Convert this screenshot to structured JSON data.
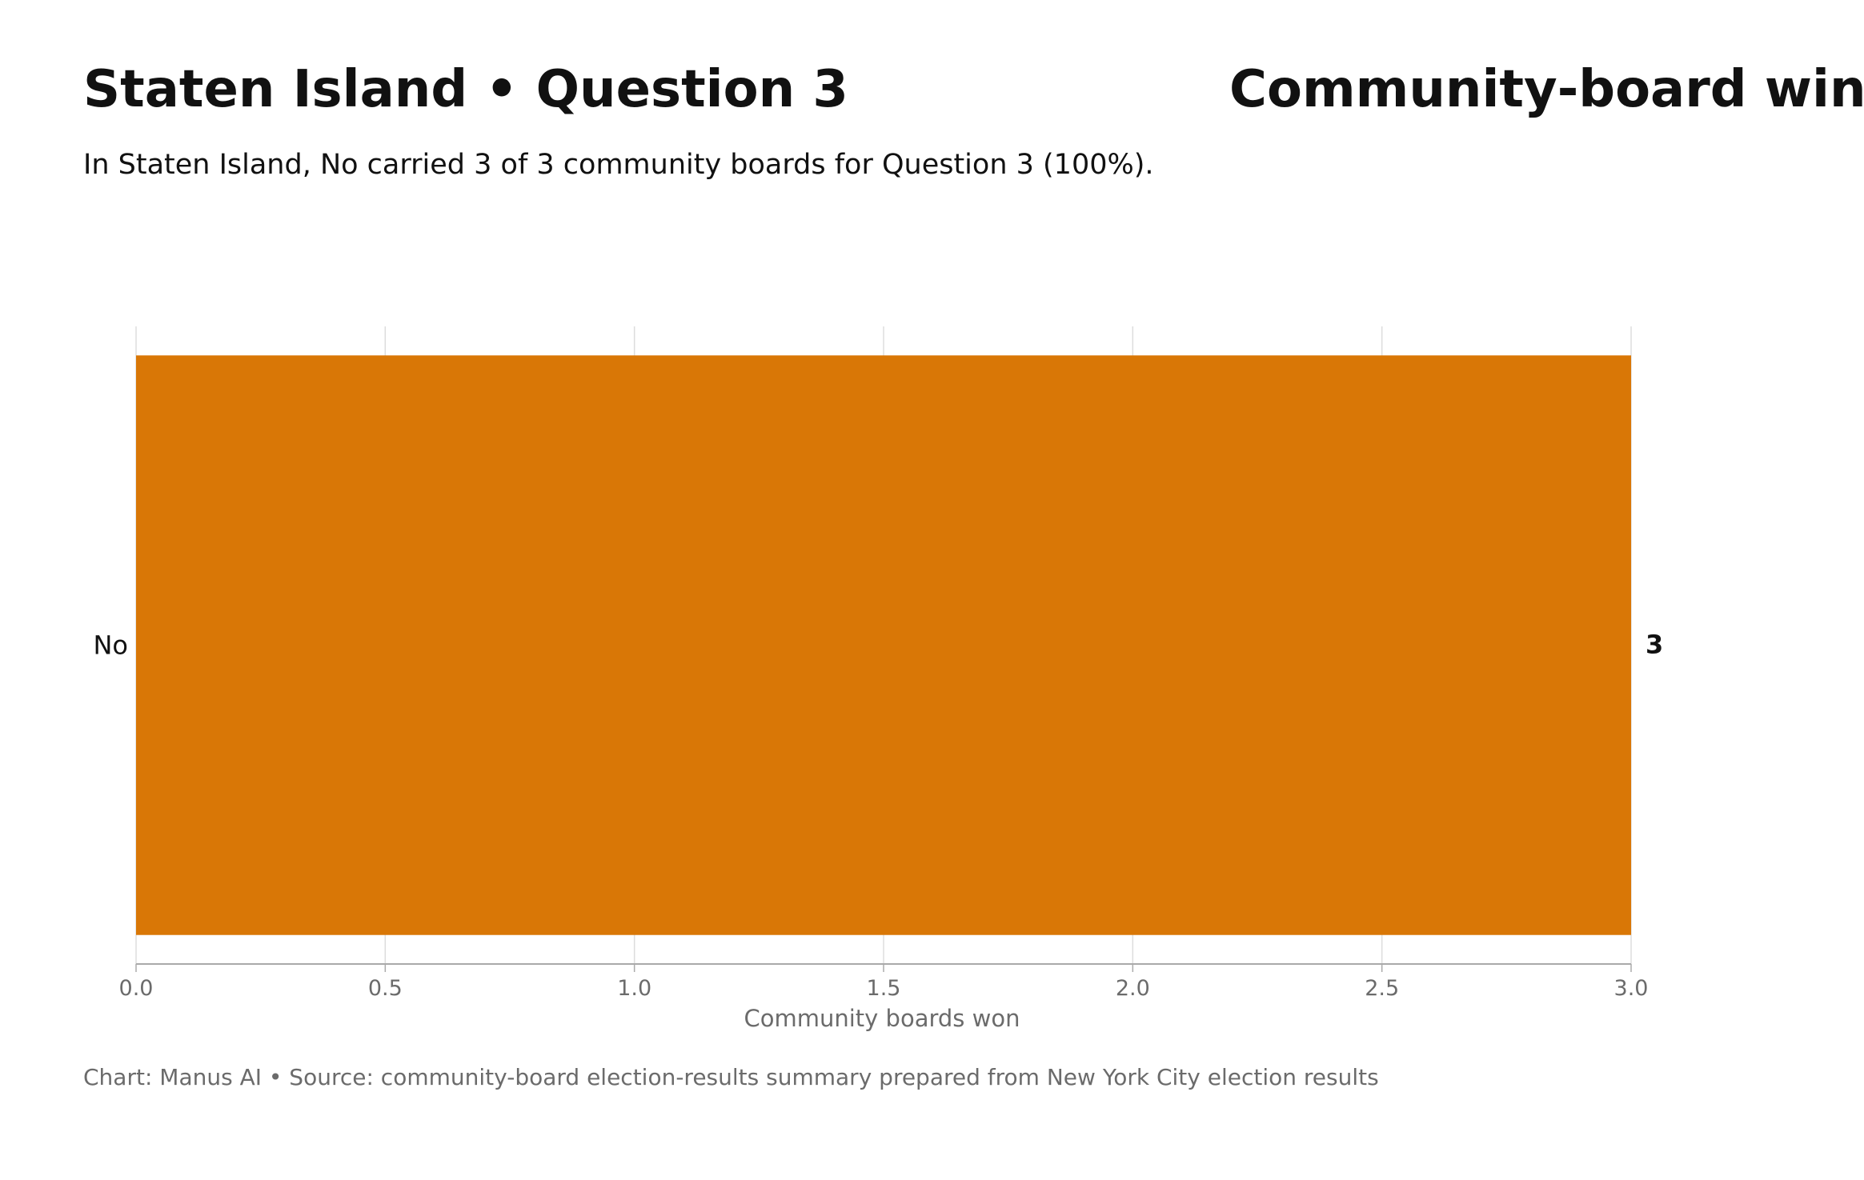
{
  "header": {
    "title_left": "Staten Island • Question 3",
    "title_right": "Community-board wins",
    "subtitle": "In Staten Island, No carried 3 of 3 community boards for Question 3 (100%)."
  },
  "footer": {
    "source": "Chart: Manus AI • Source: community-board election-results summary prepared from New York City election results"
  },
  "chart_data": {
    "type": "bar",
    "orientation": "horizontal",
    "title": "Community-board wins",
    "categories": [
      "No"
    ],
    "values": [
      3
    ],
    "value_labels": [
      "3"
    ],
    "xlabel": "Community boards won",
    "ylabel": "",
    "xlim": [
      0,
      3
    ],
    "xticks": [
      0,
      0.5,
      1,
      1.5,
      2,
      2.5,
      3
    ],
    "xtick_labels": [
      "0.0",
      "0.5",
      "1.0",
      "1.5",
      "2.0",
      "2.5",
      "3.0"
    ],
    "grid": "vertical",
    "legend": "none",
    "colors": {
      "bar": "#D97706",
      "grid": "#dddddd",
      "axis": "#aaaaaa",
      "tick_text": "#6b6b6b",
      "label_text": "#111111"
    }
  }
}
